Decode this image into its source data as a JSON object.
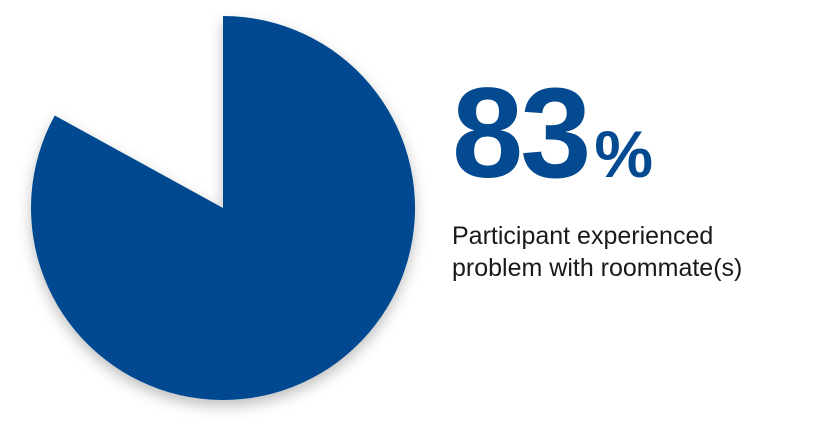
{
  "chart_data": {
    "type": "pie",
    "title": "",
    "categories": [
      "Participant experienced problem with roommate(s)",
      ""
    ],
    "values": [
      83,
      17
    ],
    "colors": [
      "#034a91",
      "#ffffff"
    ],
    "start": "12 o'clock",
    "direction": "clockwise",
    "shadow": true,
    "legend": "none"
  },
  "stat": {
    "number": "83",
    "unit": "%",
    "caption_line1": "Participant experienced",
    "caption_line2": "problem with roommate(s)"
  }
}
